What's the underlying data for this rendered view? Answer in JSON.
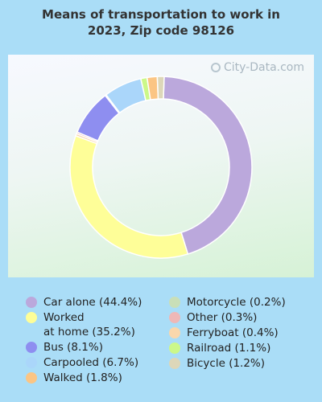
{
  "title": "Means of transportation to work in\n2023, Zip code 98126",
  "watermark": "City-Data.com",
  "chart_data": {
    "type": "pie",
    "donut": true,
    "title": "Means of transportation to work in 2023, Zip code 98126",
    "slices": [
      {
        "label": "Car alone (44.4%)",
        "value": 44.4,
        "color": "#bba8dc"
      },
      {
        "label": "Worked\nat home (35.2%)",
        "value": 35.2,
        "color": "#fefe98"
      },
      {
        "label": "Ferryboat (0.4%)",
        "value": 0.4,
        "color": "#fad7ac"
      },
      {
        "label": "Other (0.3%)",
        "value": 0.3,
        "color": "#efb8b7"
      },
      {
        "label": "Bus (8.1%)",
        "value": 8.1,
        "color": "#8e8ef0"
      },
      {
        "label": "Motorcycle (0.2%)",
        "value": 0.2,
        "color": "#c9dfb8"
      },
      {
        "label": "Carpooled (6.7%)",
        "value": 6.7,
        "color": "#aad6fa"
      },
      {
        "label": "Railroad (1.1%)",
        "value": 1.1,
        "color": "#ccf889"
      },
      {
        "label": "Walked (1.8%)",
        "value": 1.8,
        "color": "#fbc584"
      },
      {
        "label": "Bicycle (1.2%)",
        "value": 1.2,
        "color": "#ddd7b9"
      }
    ],
    "legend": [
      {
        "label": "Car alone (44.4%)",
        "color": "#bba8dc",
        "column": 0
      },
      {
        "label": "Worked\nat home (35.2%)",
        "color": "#fefe98",
        "column": 0
      },
      {
        "label": "Bus (8.1%)",
        "color": "#8e8ef0",
        "column": 0
      },
      {
        "label": "Carpooled (6.7%)",
        "color": "#aad6fa",
        "column": 0
      },
      {
        "label": "Walked (1.8%)",
        "color": "#fbc584",
        "column": 0
      },
      {
        "label": "Motorcycle (0.2%)",
        "color": "#c9dfb8",
        "column": 1
      },
      {
        "label": "Other (0.3%)",
        "color": "#efb8b7",
        "column": 1
      },
      {
        "label": "Ferryboat (0.4%)",
        "color": "#fad7ac",
        "column": 1
      },
      {
        "label": "Railroad (1.1%)",
        "color": "#ccf889",
        "column": 1
      },
      {
        "label": "Bicycle (1.2%)",
        "color": "#ddd7b9",
        "column": 1
      }
    ],
    "legend_placement": "bottom"
  }
}
